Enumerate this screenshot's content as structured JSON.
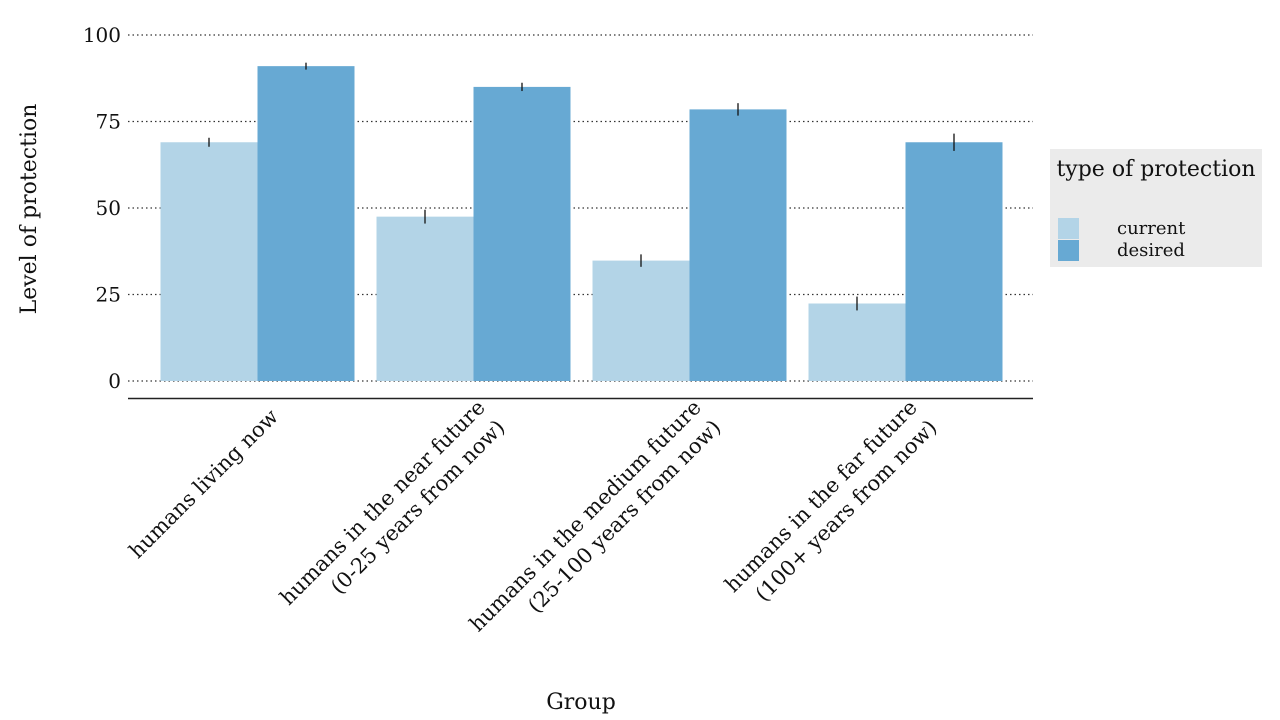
{
  "chart_data": {
    "type": "bar",
    "xlabel": "Group",
    "ylabel": "Level of protection",
    "ylim": [
      0,
      100
    ],
    "yticks": [
      "0",
      "25",
      "50",
      "75",
      "100"
    ],
    "grid": "horizontal dotted",
    "categories": [
      [
        "humans living now"
      ],
      [
        "humans in the near future",
        "(0-25 years from now)"
      ],
      [
        "humans in the medium future",
        "(25-100 years from now)"
      ],
      [
        "humans in the far future",
        "(100+ years from now)"
      ]
    ],
    "series": [
      {
        "name": "current",
        "color": "#b3d4e7",
        "values": [
          69,
          47.5,
          34.8,
          22.4
        ],
        "errors": [
          1.3,
          2.0,
          1.8,
          2.0
        ]
      },
      {
        "name": "desired",
        "color": "#67a9d3",
        "values": [
          91,
          85,
          78.5,
          69
        ],
        "errors": [
          1.0,
          1.2,
          1.8,
          2.5
        ]
      }
    ],
    "legend": {
      "title": "type of protection",
      "position": "right"
    }
  }
}
